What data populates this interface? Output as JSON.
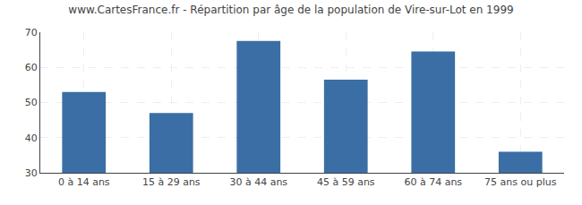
{
  "chart_data": {
    "type": "bar",
    "title": "www.CartesFrance.fr - Répartition par âge de la population de Vire-sur-Lot en 1999",
    "categories": [
      "0 à 14 ans",
      "15 à 29 ans",
      "30 à 44 ans",
      "45 à 59 ans",
      "60 à 74 ans",
      "75 ans ou plus"
    ],
    "values": [
      53,
      47,
      67.5,
      56.5,
      64.5,
      36
    ],
    "color": "#3a6ea5",
    "ylim": [
      30,
      70
    ],
    "yticks": [
      30,
      40,
      50,
      60,
      70
    ],
    "grid": true
  }
}
